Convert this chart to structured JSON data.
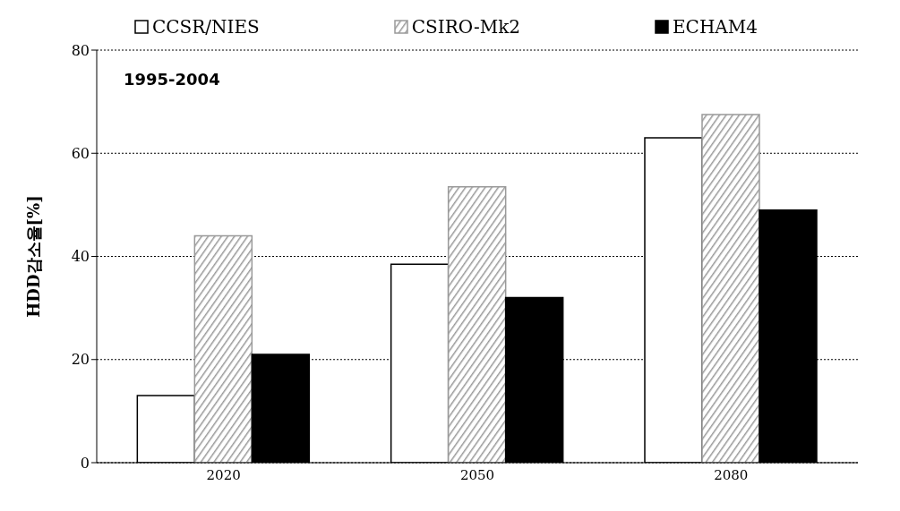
{
  "chart_data": {
    "type": "bar",
    "ylabel": "HDD감소율[%]",
    "categories": [
      "2020",
      "2050",
      "2080"
    ],
    "series": [
      {
        "name": "CCSR/NIES",
        "color": "#ffffff",
        "values": [
          13,
          38.5,
          63
        ]
      },
      {
        "name": "CSIRO-Mk2",
        "color": "#999999",
        "values": [
          44,
          53.5,
          67.5
        ]
      },
      {
        "name": "ECHAM4",
        "color": "#000000",
        "values": [
          21,
          32,
          49
        ]
      }
    ],
    "ylim": [
      0,
      80
    ],
    "yticks": [
      0,
      20,
      40,
      60,
      80
    ],
    "grid": "y",
    "legend": "top",
    "annotations": [
      "1995-2004"
    ]
  }
}
